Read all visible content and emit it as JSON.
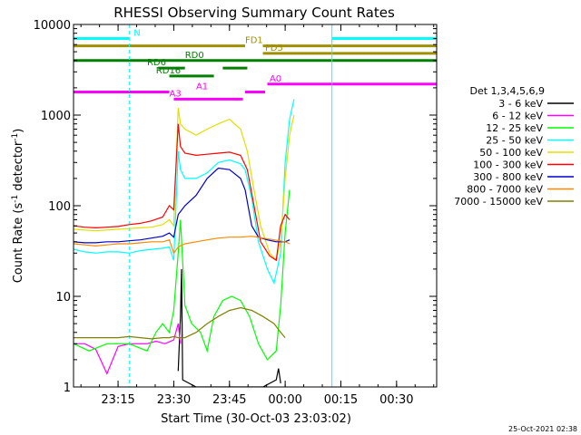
{
  "chart_data": {
    "type": "line",
    "title": "RHESSI Observing Summary Count Rates",
    "xlabel": "Start Time (30-Oct-03 23:03:02)",
    "ylabel_main": "Count Rate (s",
    "ylabel_sup1": "-1",
    "ylabel_mid": " detector",
    "ylabel_sup2": "-1",
    "ylabel_end": ")",
    "xlim_minutes": [
      23.05,
      24.68
    ],
    "x_unit_note": "hours of day on 30-Oct-03; ticks past 24:00 wrap",
    "ylim": [
      1,
      10000
    ],
    "yscale": "log",
    "x_ticks": [
      {
        "label": "23:15",
        "hour": 23.25
      },
      {
        "label": "23:30",
        "hour": 23.5
      },
      {
        "label": "23:45",
        "hour": 23.75
      },
      {
        "label": "00:00",
        "hour": 24.0
      },
      {
        "label": "00:15",
        "hour": 24.25
      },
      {
        "label": "00:30",
        "hour": 24.5
      }
    ],
    "y_ticks": [
      {
        "label": "1",
        "value": 1
      },
      {
        "label": "10",
        "value": 10
      },
      {
        "label": "100",
        "value": 100
      },
      {
        "label": "1000",
        "value": 1000
      },
      {
        "label": "10000",
        "value": 10000
      }
    ],
    "legend_header": "Det 1,3,4,5,6,9",
    "legend_placement": "right, outside plot",
    "series": [
      {
        "name": "3 - 6 keV",
        "color": "#000000",
        "points": [
          [
            23.52,
            1.5
          ],
          [
            23.53,
            6
          ],
          [
            23.535,
            20
          ],
          [
            23.54,
            1.2
          ],
          [
            23.6,
            1
          ],
          [
            23.9,
            1
          ],
          [
            23.96,
            1.2
          ],
          [
            23.97,
            1.6
          ],
          [
            23.98,
            1.1
          ]
        ]
      },
      {
        "name": "6 - 12 keV",
        "color": "#ff00ff",
        "points": [
          [
            23.05,
            3
          ],
          [
            23.1,
            3
          ],
          [
            23.15,
            2.6
          ],
          [
            23.2,
            1.4
          ],
          [
            23.25,
            2.8
          ],
          [
            23.3,
            3
          ],
          [
            23.38,
            3
          ],
          [
            23.42,
            3.2
          ],
          [
            23.46,
            3
          ],
          [
            23.5,
            3.3
          ],
          [
            23.52,
            5
          ],
          [
            23.53,
            3
          ]
        ]
      },
      {
        "name": "12 - 25 keV",
        "color": "#00ff00",
        "points": [
          [
            23.05,
            3
          ],
          [
            23.12,
            2.5
          ],
          [
            23.2,
            3
          ],
          [
            23.3,
            3
          ],
          [
            23.38,
            2.5
          ],
          [
            23.42,
            4
          ],
          [
            23.45,
            5
          ],
          [
            23.48,
            4
          ],
          [
            23.5,
            7
          ],
          [
            23.52,
            30
          ],
          [
            23.53,
            70
          ],
          [
            23.55,
            8
          ],
          [
            23.58,
            5
          ],
          [
            23.62,
            4
          ],
          [
            23.65,
            2.5
          ],
          [
            23.68,
            6
          ],
          [
            23.72,
            9
          ],
          [
            23.76,
            10
          ],
          [
            23.8,
            9
          ],
          [
            23.84,
            6
          ],
          [
            23.88,
            3
          ],
          [
            23.92,
            2
          ],
          [
            23.96,
            2.5
          ],
          [
            23.98,
            8
          ],
          [
            24.0,
            50
          ],
          [
            24.02,
            150
          ]
        ]
      },
      {
        "name": "25 - 50 keV",
        "color": "#00ffff",
        "points": [
          [
            23.05,
            33
          ],
          [
            23.1,
            31
          ],
          [
            23.15,
            30
          ],
          [
            23.2,
            31
          ],
          [
            23.25,
            31
          ],
          [
            23.3,
            30
          ],
          [
            23.35,
            32
          ],
          [
            23.4,
            33
          ],
          [
            23.45,
            34
          ],
          [
            23.48,
            35
          ],
          [
            23.5,
            25
          ],
          [
            23.52,
            400
          ],
          [
            23.53,
            250
          ],
          [
            23.55,
            200
          ],
          [
            23.6,
            200
          ],
          [
            23.65,
            230
          ],
          [
            23.7,
            300
          ],
          [
            23.75,
            320
          ],
          [
            23.8,
            290
          ],
          [
            23.82,
            250
          ],
          [
            23.85,
            120
          ],
          [
            23.88,
            40
          ],
          [
            23.92,
            20
          ],
          [
            23.95,
            14
          ],
          [
            23.98,
            30
          ],
          [
            24.0,
            300
          ],
          [
            24.02,
            900
          ],
          [
            24.04,
            1500
          ]
        ]
      },
      {
        "name": "50 - 100 keV",
        "color": "#e0e000",
        "points": [
          [
            23.05,
            55
          ],
          [
            23.1,
            54
          ],
          [
            23.15,
            53
          ],
          [
            23.2,
            54
          ],
          [
            23.25,
            55
          ],
          [
            23.3,
            56
          ],
          [
            23.35,
            57
          ],
          [
            23.4,
            58
          ],
          [
            23.45,
            62
          ],
          [
            23.48,
            70
          ],
          [
            23.5,
            60
          ],
          [
            23.52,
            1200
          ],
          [
            23.53,
            800
          ],
          [
            23.55,
            700
          ],
          [
            23.6,
            600
          ],
          [
            23.65,
            700
          ],
          [
            23.7,
            800
          ],
          [
            23.75,
            900
          ],
          [
            23.8,
            700
          ],
          [
            23.83,
            400
          ],
          [
            23.86,
            150
          ],
          [
            23.89,
            60
          ],
          [
            23.93,
            30
          ],
          [
            23.96,
            25
          ],
          [
            23.98,
            40
          ],
          [
            24.0,
            200
          ],
          [
            24.02,
            600
          ],
          [
            24.04,
            1000
          ]
        ]
      },
      {
        "name": "100 - 300 keV",
        "color": "#ff0000",
        "points": [
          [
            23.05,
            60
          ],
          [
            23.1,
            58
          ],
          [
            23.15,
            57
          ],
          [
            23.2,
            58
          ],
          [
            23.25,
            59
          ],
          [
            23.3,
            62
          ],
          [
            23.35,
            64
          ],
          [
            23.4,
            68
          ],
          [
            23.45,
            75
          ],
          [
            23.48,
            100
          ],
          [
            23.5,
            90
          ],
          [
            23.52,
            800
          ],
          [
            23.53,
            450
          ],
          [
            23.55,
            380
          ],
          [
            23.6,
            360
          ],
          [
            23.65,
            370
          ],
          [
            23.7,
            380
          ],
          [
            23.75,
            390
          ],
          [
            23.8,
            360
          ],
          [
            23.83,
            250
          ],
          [
            23.86,
            100
          ],
          [
            23.89,
            40
          ],
          [
            23.93,
            28
          ],
          [
            23.96,
            25
          ],
          [
            23.98,
            60
          ],
          [
            24.0,
            80
          ],
          [
            24.02,
            70
          ]
        ]
      },
      {
        "name": "300 - 800 keV",
        "color": "#0000cc",
        "points": [
          [
            23.05,
            40
          ],
          [
            23.1,
            39
          ],
          [
            23.15,
            39
          ],
          [
            23.2,
            40
          ],
          [
            23.25,
            40
          ],
          [
            23.3,
            41
          ],
          [
            23.35,
            42
          ],
          [
            23.4,
            44
          ],
          [
            23.45,
            46
          ],
          [
            23.48,
            50
          ],
          [
            23.5,
            45
          ],
          [
            23.52,
            80
          ],
          [
            23.55,
            100
          ],
          [
            23.6,
            130
          ],
          [
            23.65,
            200
          ],
          [
            23.7,
            260
          ],
          [
            23.75,
            250
          ],
          [
            23.8,
            200
          ],
          [
            23.82,
            150
          ],
          [
            23.85,
            60
          ],
          [
            23.88,
            45
          ],
          [
            23.92,
            42
          ],
          [
            23.96,
            40
          ],
          [
            24.0,
            40
          ],
          [
            24.02,
            42
          ]
        ]
      },
      {
        "name": "800 - 7000 keV",
        "color": "#ff8800",
        "points": [
          [
            23.05,
            38
          ],
          [
            23.1,
            37
          ],
          [
            23.15,
            36
          ],
          [
            23.2,
            37
          ],
          [
            23.25,
            38
          ],
          [
            23.3,
            38
          ],
          [
            23.35,
            39
          ],
          [
            23.4,
            40
          ],
          [
            23.45,
            40
          ],
          [
            23.48,
            42
          ],
          [
            23.5,
            30
          ],
          [
            23.52,
            35
          ],
          [
            23.55,
            38
          ],
          [
            23.6,
            40
          ],
          [
            23.65,
            42
          ],
          [
            23.7,
            44
          ],
          [
            23.75,
            45
          ],
          [
            23.8,
            45
          ],
          [
            23.85,
            46
          ],
          [
            23.9,
            44
          ],
          [
            23.95,
            42
          ],
          [
            24.0,
            40
          ],
          [
            24.02,
            38
          ]
        ]
      },
      {
        "name": "7000 - 15000 keV",
        "color": "#808000",
        "points": [
          [
            23.05,
            3.5
          ],
          [
            23.1,
            3.5
          ],
          [
            23.15,
            3.5
          ],
          [
            23.2,
            3.5
          ],
          [
            23.25,
            3.5
          ],
          [
            23.3,
            3.6
          ],
          [
            23.35,
            3.5
          ],
          [
            23.4,
            3.4
          ],
          [
            23.45,
            3.5
          ],
          [
            23.48,
            3.5
          ],
          [
            23.5,
            3.6
          ],
          [
            23.52,
            3.5
          ],
          [
            23.55,
            3.5
          ],
          [
            23.6,
            4
          ],
          [
            23.65,
            5
          ],
          [
            23.7,
            6
          ],
          [
            23.75,
            7
          ],
          [
            23.8,
            7.5
          ],
          [
            23.85,
            7
          ],
          [
            23.9,
            6
          ],
          [
            23.95,
            5
          ],
          [
            23.98,
            4
          ],
          [
            24.0,
            3.5
          ]
        ]
      }
    ],
    "cyan_vlines_hours": [
      23.05,
      23.3,
      24.21,
      24.68
    ],
    "state_bars": [
      {
        "label": "N",
        "color": "#00ffff",
        "y": 7000,
        "segments": [
          [
            23.05,
            23.3
          ],
          [
            24.21,
            24.68
          ]
        ],
        "label_at": 23.32
      },
      {
        "label": "FD1",
        "color": "#a09000",
        "y": 5800,
        "segments": [
          [
            23.05,
            23.82
          ],
          [
            23.9,
            24.68
          ]
        ],
        "label_at": 23.82
      },
      {
        "label": "FD5",
        "color": "#a09000",
        "y": 4800,
        "segments": [
          [
            23.9,
            24.68
          ]
        ],
        "label_at": 23.91
      },
      {
        "label": "RD0",
        "color": "#008000",
        "y": 4000,
        "segments": [
          [
            23.05,
            24.68
          ]
        ],
        "label_at": 23.55
      },
      {
        "label": "RD6",
        "color": "#008000",
        "y": 3300,
        "segments": [
          [
            23.43,
            23.55
          ],
          [
            23.72,
            23.83
          ]
        ],
        "label_at": 23.38
      },
      {
        "label": "RD16",
        "color": "#008000",
        "y": 2700,
        "segments": [
          [
            23.48,
            23.68
          ]
        ],
        "label_at": 23.42
      },
      {
        "label": "A0",
        "color": "#ff00ff",
        "y": 2200,
        "segments": [
          [
            23.92,
            24.68
          ]
        ],
        "label_at": 23.93
      },
      {
        "label": "A1",
        "color": "#ff00ff",
        "y": 1800,
        "segments": [
          [
            23.05,
            23.48
          ],
          [
            23.82,
            23.91
          ]
        ],
        "label_at": 23.6
      },
      {
        "label": "A3",
        "color": "#ff00ff",
        "y": 1500,
        "segments": [
          [
            23.5,
            23.81
          ]
        ],
        "label_at": 23.48
      }
    ]
  },
  "timestamp": "25-Oct-2021 02:38"
}
